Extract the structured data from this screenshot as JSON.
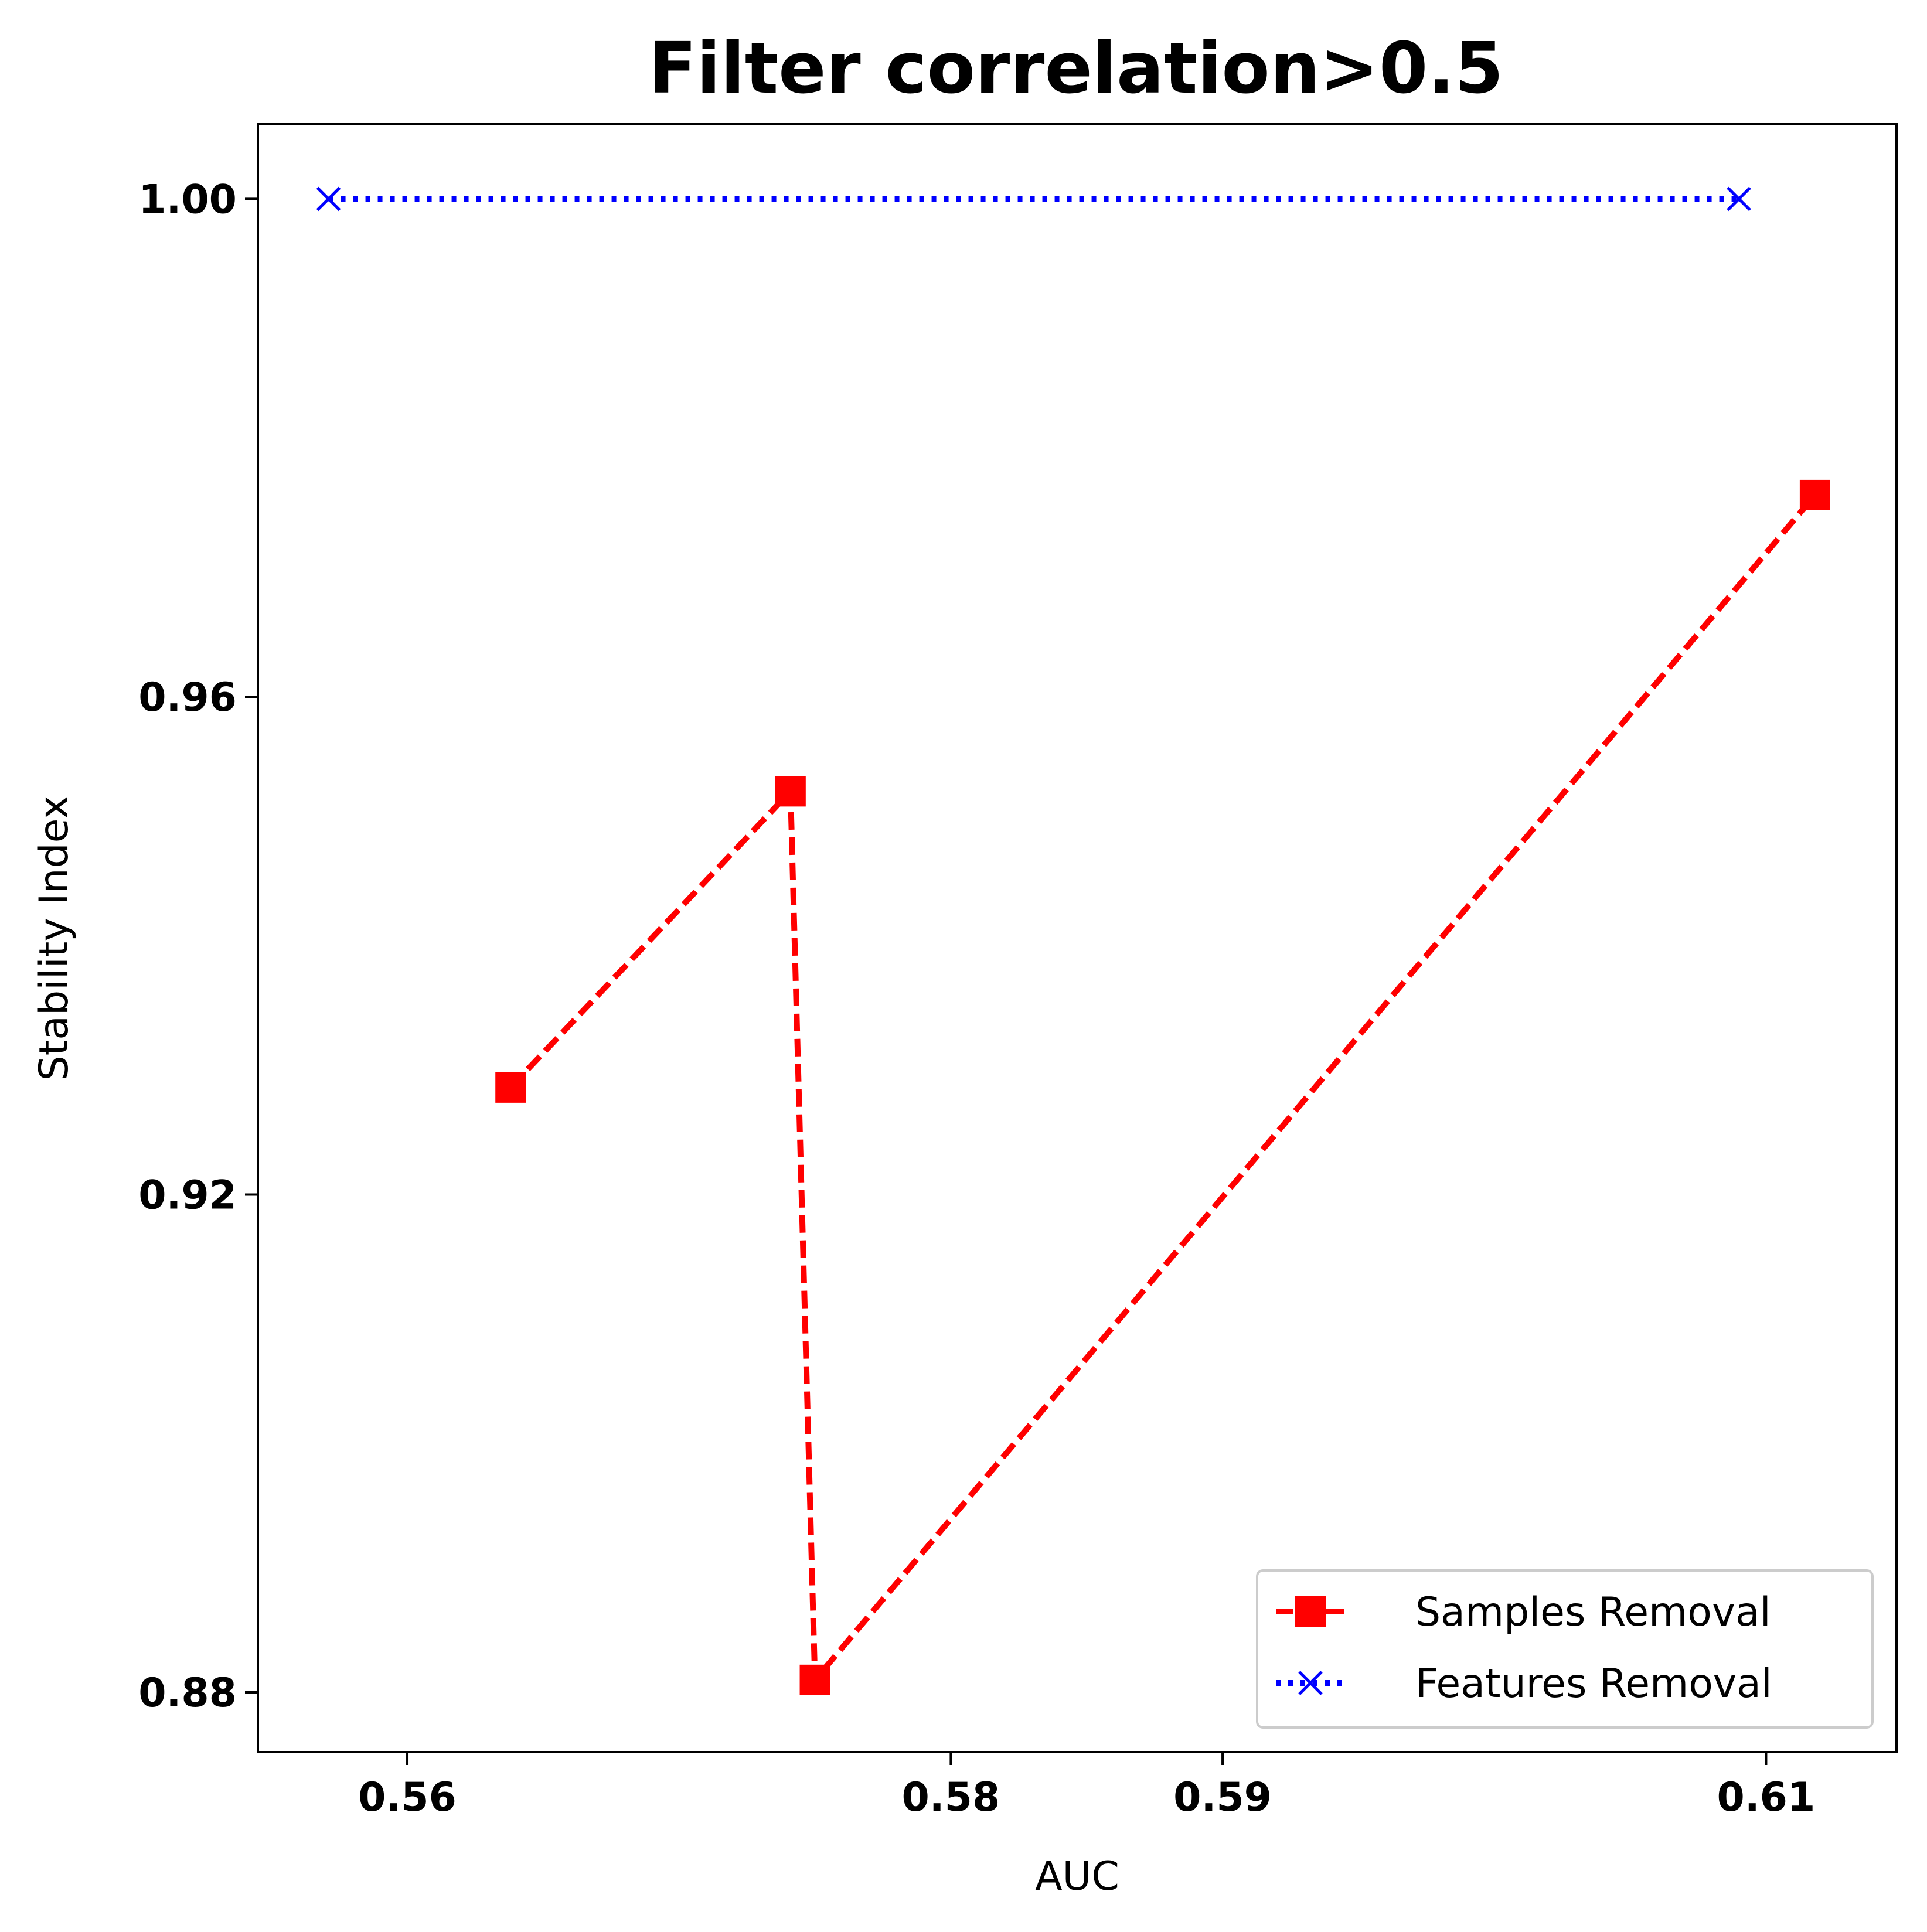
{
  "chart_data": {
    "type": "line",
    "title": "Filter correlation>0.5",
    "xlabel": "AUC",
    "ylabel": "Stability Index",
    "xlim": [
      0.5545,
      0.6148
    ],
    "ylim": [
      0.8752,
      1.006
    ],
    "xticks": [
      0.56,
      0.58,
      0.59,
      0.61
    ],
    "xtick_labels": [
      "0.56",
      "0.58",
      "0.59",
      "0.61"
    ],
    "yticks": [
      0.88,
      0.92,
      0.96,
      1.0
    ],
    "ytick_labels": [
      "0.88",
      "0.92",
      "0.96",
      "1.00"
    ],
    "grid": false,
    "legend_position": "lower-right",
    "series": [
      {
        "name": "Samples Removal",
        "color": "#ff0000",
        "line_style": "dashed",
        "marker": "square",
        "x": [
          0.5638,
          0.5741,
          0.575,
          0.6118
        ],
        "y": [
          0.9286,
          0.9524,
          0.881,
          0.9762
        ]
      },
      {
        "name": "Features Removal",
        "color": "#0000ff",
        "line_style": "dotted",
        "marker": "x",
        "x": [
          0.5571,
          0.609
        ],
        "y": [
          1.0,
          1.0
        ]
      }
    ]
  }
}
